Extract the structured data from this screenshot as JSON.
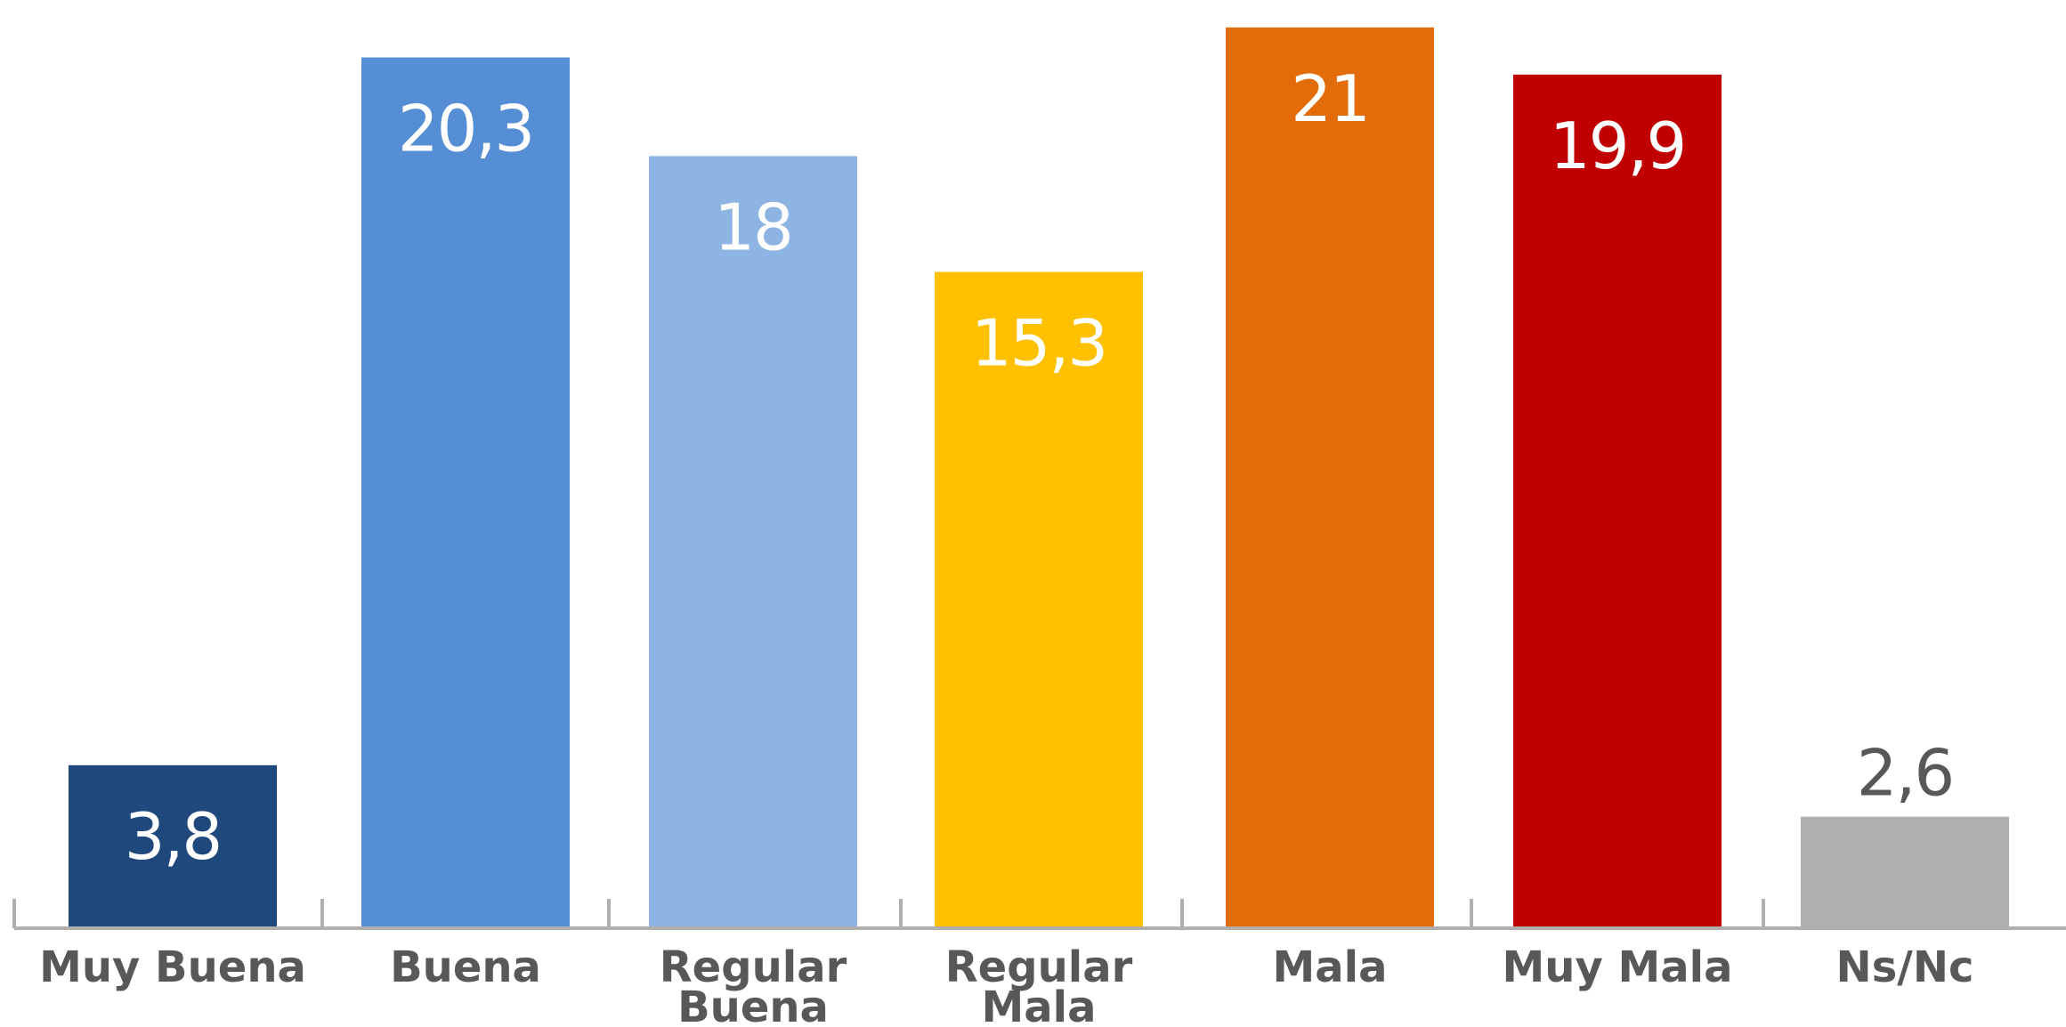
{
  "chart_data": {
    "type": "bar",
    "title": "",
    "xlabel": "",
    "ylabel": "",
    "ylim": [
      0,
      21
    ],
    "grid": false,
    "legend": "none",
    "categories": [
      [
        "Muy Buena"
      ],
      [
        "Buena"
      ],
      [
        "Regular",
        "Buena"
      ],
      [
        "Regular",
        "Mala"
      ],
      [
        "Mala"
      ],
      [
        "Muy Mala"
      ],
      [
        "Ns/Nc"
      ]
    ],
    "values": [
      3.8,
      20.3,
      18,
      15.3,
      21,
      19.9,
      2.6
    ],
    "value_labels": [
      "3,8",
      "20,3",
      "18",
      "15,3",
      "21",
      "19,9",
      "2,6"
    ],
    "colors": [
      "#1f497d",
      "#558ed5",
      "#8eb4e3",
      "#ffc000",
      "#e36c0a",
      "#c00000",
      "#b0afad"
    ],
    "label_colors": [
      "#ffffff",
      "#ffffff",
      "#ffffff",
      "#ffffff",
      "#ffffff",
      "#ffffff",
      "#58585a"
    ],
    "label_positions": [
      "inside",
      "inside",
      "inside",
      "inside",
      "inside",
      "inside",
      "outside"
    ],
    "axis_color": "#b0afad",
    "category_label_color": "#58585a"
  }
}
